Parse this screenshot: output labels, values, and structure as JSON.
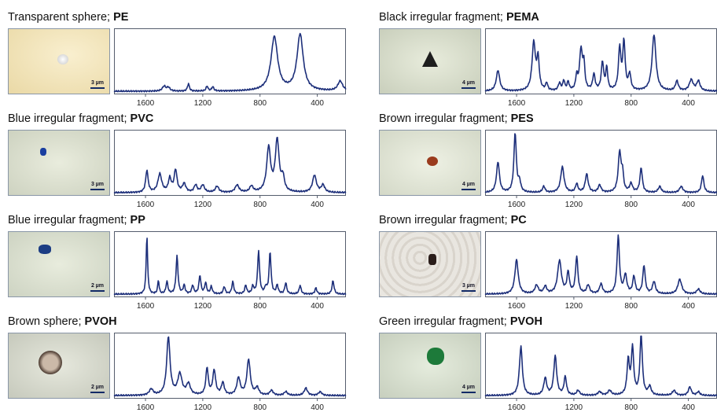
{
  "chart_data": [
    {
      "type": "line",
      "title": "Transparent sphere; PE",
      "title_prefix": "Transparent sphere; ",
      "polymer": "PE",
      "scale_label": "3 µm",
      "xlim": [
        1820,
        200
      ],
      "xticks": [
        1600,
        1200,
        800,
        400
      ],
      "peaks": [
        [
          1470,
          0.08,
          14
        ],
        [
          1440,
          0.06,
          12
        ],
        [
          1300,
          0.12,
          8
        ],
        [
          1170,
          0.08,
          8
        ],
        [
          1130,
          0.07,
          8
        ],
        [
          700,
          0.88,
          28
        ],
        [
          520,
          0.92,
          26
        ],
        [
          240,
          0.16,
          20
        ]
      ]
    },
    {
      "type": "line",
      "title": "Black irregular fragment; PEMA",
      "title_prefix": "Black irregular fragment; ",
      "polymer": "PEMA",
      "scale_label": "4 µm",
      "xlim": [
        1820,
        200
      ],
      "xticks": [
        1600,
        1200,
        800,
        400
      ],
      "peaks": [
        [
          1730,
          0.34,
          14
        ],
        [
          1480,
          0.78,
          14
        ],
        [
          1450,
          0.5,
          10
        ],
        [
          1390,
          0.12,
          8
        ],
        [
          1300,
          0.12,
          10
        ],
        [
          1270,
          0.16,
          8
        ],
        [
          1240,
          0.14,
          8
        ],
        [
          1180,
          0.22,
          8
        ],
        [
          1150,
          0.66,
          12
        ],
        [
          1130,
          0.4,
          8
        ],
        [
          1060,
          0.26,
          10
        ],
        [
          1000,
          0.46,
          10
        ],
        [
          970,
          0.36,
          8
        ],
        [
          880,
          0.68,
          10
        ],
        [
          850,
          0.78,
          10
        ],
        [
          810,
          0.26,
          10
        ],
        [
          640,
          0.92,
          16
        ],
        [
          480,
          0.16,
          12
        ],
        [
          380,
          0.18,
          16
        ],
        [
          330,
          0.16,
          14
        ]
      ]
    },
    {
      "type": "line",
      "title": "Blue irregular fragment; PVC",
      "title_prefix": "Blue irregular fragment; ",
      "polymer": "PVC",
      "scale_label": "3 µm",
      "xlim": [
        1820,
        200
      ],
      "xticks": [
        1600,
        1200,
        800,
        400
      ],
      "peaks": [
        [
          1590,
          0.36,
          10
        ],
        [
          1500,
          0.3,
          16
        ],
        [
          1430,
          0.22,
          12
        ],
        [
          1390,
          0.36,
          12
        ],
        [
          1330,
          0.14,
          14
        ],
        [
          1250,
          0.12,
          12
        ],
        [
          1200,
          0.12,
          14
        ],
        [
          1100,
          0.1,
          14
        ],
        [
          960,
          0.12,
          16
        ],
        [
          860,
          0.1,
          14
        ],
        [
          740,
          0.72,
          16
        ],
        [
          680,
          0.84,
          16
        ],
        [
          640,
          0.22,
          12
        ],
        [
          420,
          0.28,
          16
        ],
        [
          360,
          0.12,
          14
        ]
      ]
    },
    {
      "type": "line",
      "title": "Brown irregular fragment; PES",
      "title_prefix": "Brown irregular fragment; ",
      "polymer": "PES",
      "scale_label": "4 µm",
      "xlim": [
        1820,
        200
      ],
      "xticks": [
        1600,
        1200,
        800,
        400
      ],
      "peaks": [
        [
          1730,
          0.5,
          12
        ],
        [
          1610,
          0.97,
          10
        ],
        [
          1580,
          0.16,
          10
        ],
        [
          1410,
          0.1,
          10
        ],
        [
          1280,
          0.42,
          14
        ],
        [
          1180,
          0.14,
          10
        ],
        [
          1110,
          0.3,
          12
        ],
        [
          1020,
          0.12,
          12
        ],
        [
          880,
          0.66,
          12
        ],
        [
          860,
          0.28,
          8
        ],
        [
          800,
          0.14,
          12
        ],
        [
          730,
          0.4,
          10
        ],
        [
          600,
          0.1,
          12
        ],
        [
          450,
          0.1,
          14
        ],
        [
          300,
          0.28,
          10
        ]
      ]
    },
    {
      "type": "line",
      "title": "Blue irregular fragment; PP",
      "title_prefix": "Blue irregular fragment; ",
      "polymer": "PP",
      "scale_label": "2 µm",
      "xlim": [
        1820,
        200
      ],
      "xticks": [
        1600,
        1200,
        800,
        400
      ],
      "peaks": [
        [
          1590,
          0.96,
          6
        ],
        [
          1510,
          0.22,
          6
        ],
        [
          1450,
          0.2,
          8
        ],
        [
          1380,
          0.62,
          8
        ],
        [
          1330,
          0.14,
          8
        ],
        [
          1270,
          0.14,
          8
        ],
        [
          1220,
          0.3,
          8
        ],
        [
          1180,
          0.18,
          8
        ],
        [
          1140,
          0.12,
          8
        ],
        [
          1050,
          0.12,
          8
        ],
        [
          990,
          0.2,
          8
        ],
        [
          900,
          0.14,
          8
        ],
        [
          850,
          0.12,
          8
        ],
        [
          810,
          0.7,
          8
        ],
        [
          760,
          0.1,
          8
        ],
        [
          730,
          0.68,
          8
        ],
        [
          680,
          0.14,
          8
        ],
        [
          620,
          0.18,
          8
        ],
        [
          520,
          0.14,
          8
        ],
        [
          410,
          0.1,
          8
        ],
        [
          290,
          0.22,
          8
        ]
      ]
    },
    {
      "type": "line",
      "title": "Brown irregular fragment; PC",
      "title_prefix": "Brown irregular fragment; ",
      "polymer": "PC",
      "scale_label": "3 µm",
      "xlim": [
        1820,
        200
      ],
      "xticks": [
        1600,
        1200,
        800,
        400
      ],
      "peaks": [
        [
          1600,
          0.56,
          14
        ],
        [
          1460,
          0.14,
          14
        ],
        [
          1400,
          0.12,
          12
        ],
        [
          1300,
          0.54,
          16
        ],
        [
          1240,
          0.34,
          10
        ],
        [
          1180,
          0.6,
          10
        ],
        [
          1100,
          0.14,
          12
        ],
        [
          1010,
          0.16,
          12
        ],
        [
          890,
          0.94,
          10
        ],
        [
          840,
          0.3,
          12
        ],
        [
          780,
          0.28,
          10
        ],
        [
          710,
          0.46,
          10
        ],
        [
          640,
          0.2,
          12
        ],
        [
          460,
          0.24,
          16
        ],
        [
          330,
          0.08,
          14
        ]
      ]
    },
    {
      "type": "line",
      "title": "Brown sphere; PVOH",
      "title_prefix": "Brown sphere; ",
      "polymer": "PVOH",
      "scale_label": "2 µm",
      "xlim": [
        1820,
        200
      ],
      "xticks": [
        1600,
        1200,
        800,
        400
      ],
      "peaks": [
        [
          1560,
          0.1,
          16
        ],
        [
          1440,
          0.95,
          14
        ],
        [
          1360,
          0.34,
          18
        ],
        [
          1300,
          0.18,
          16
        ],
        [
          1170,
          0.44,
          10
        ],
        [
          1120,
          0.4,
          12
        ],
        [
          1060,
          0.2,
          12
        ],
        [
          950,
          0.28,
          14
        ],
        [
          880,
          0.58,
          14
        ],
        [
          820,
          0.12,
          14
        ],
        [
          720,
          0.08,
          14
        ],
        [
          620,
          0.06,
          14
        ],
        [
          480,
          0.12,
          14
        ],
        [
          380,
          0.06,
          14
        ]
      ]
    },
    {
      "type": "line",
      "title": "Green irregular fragment; PVOH",
      "title_prefix": "Green irregular fragment; ",
      "polymer": "PVOH",
      "scale_label": "4 µm",
      "xlim": [
        1820,
        200
      ],
      "xticks": [
        1600,
        1200,
        800,
        400
      ],
      "peaks": [
        [
          1570,
          0.8,
          12
        ],
        [
          1400,
          0.28,
          12
        ],
        [
          1330,
          0.64,
          12
        ],
        [
          1260,
          0.3,
          10
        ],
        [
          1170,
          0.08,
          12
        ],
        [
          1020,
          0.06,
          14
        ],
        [
          950,
          0.08,
          14
        ],
        [
          820,
          0.56,
          10
        ],
        [
          790,
          0.76,
          10
        ],
        [
          730,
          0.98,
          10
        ],
        [
          670,
          0.14,
          12
        ],
        [
          500,
          0.08,
          14
        ],
        [
          390,
          0.14,
          12
        ],
        [
          330,
          0.06,
          12
        ]
      ]
    }
  ],
  "colors": {
    "line": "#1d2f7a",
    "axis": "#555d6d"
  }
}
